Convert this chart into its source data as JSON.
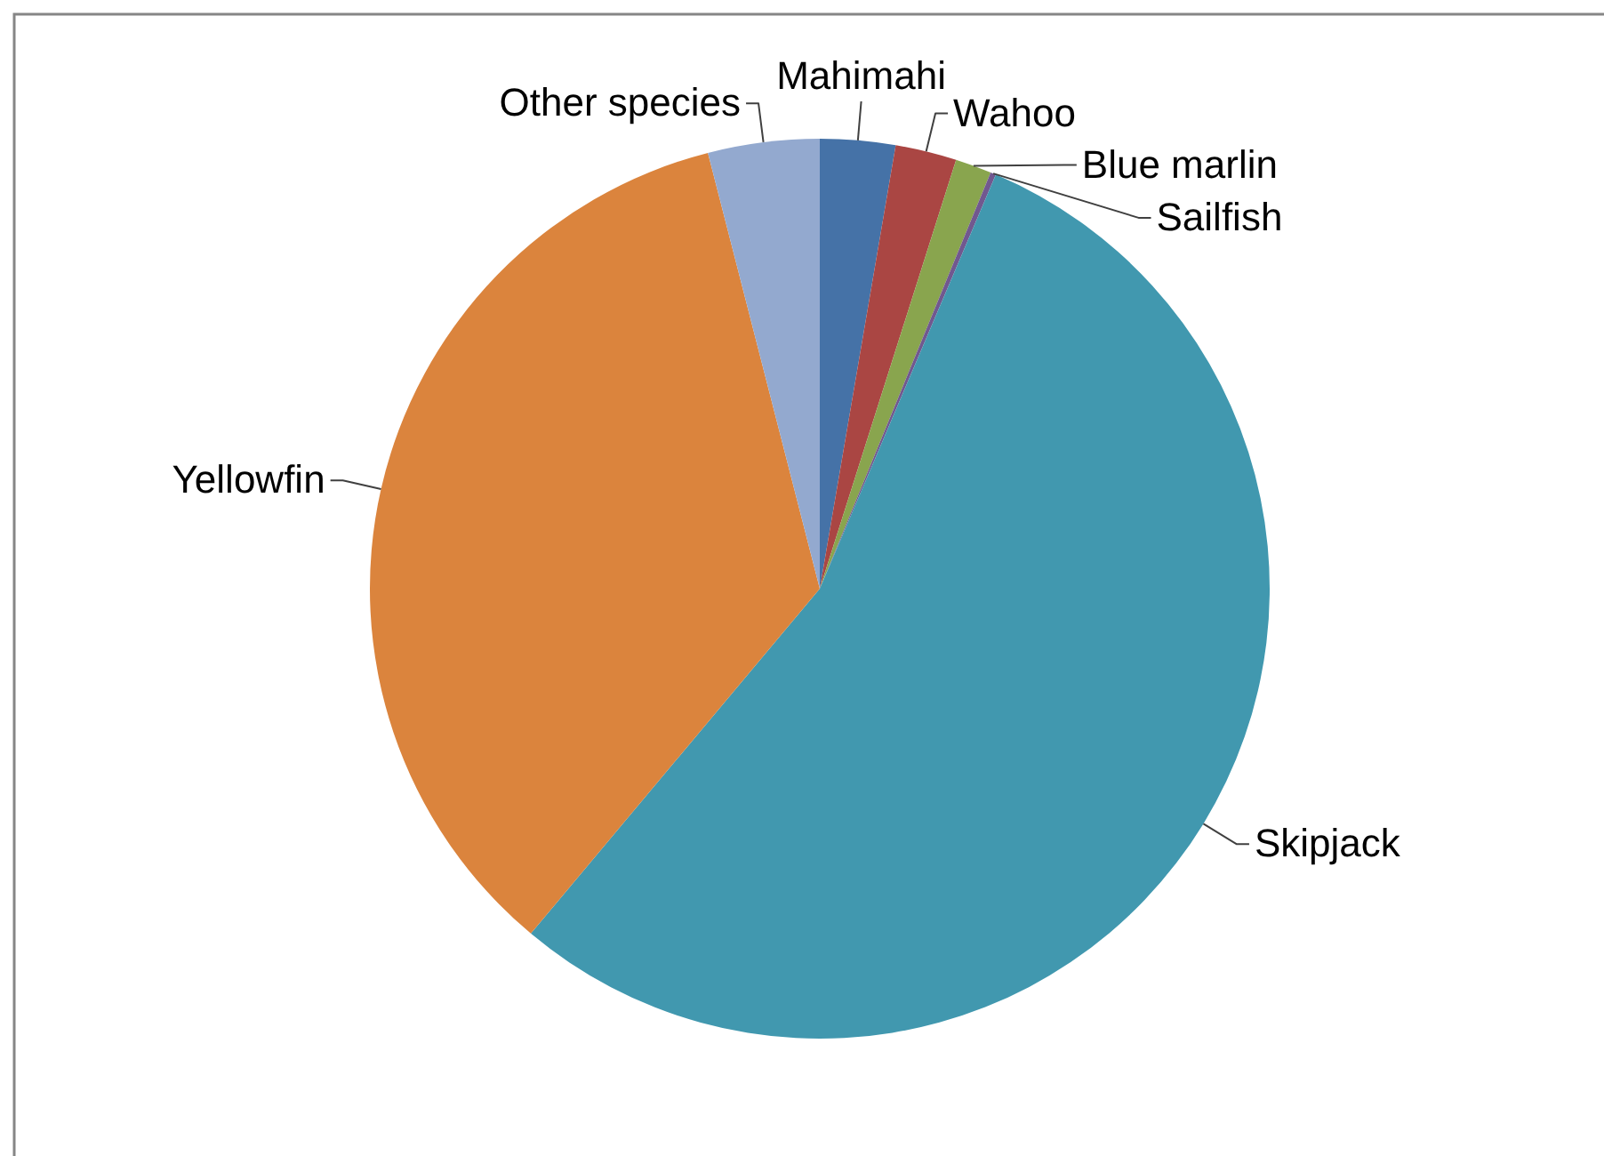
{
  "chart_data": {
    "type": "pie",
    "categories": [
      "Mahimahi",
      "Wahoo",
      "Blue marlin",
      "Sailfish",
      "Skipjack",
      "Yellowfin",
      "Other species"
    ],
    "values": [
      2.7,
      2.2,
      1.3,
      0.2,
      54.7,
      34.9,
      4.0
    ],
    "colors": [
      "#4572a7",
      "#aa4643",
      "#89a54e",
      "#71588f",
      "#4198af",
      "#db843d",
      "#93a9cf"
    ]
  }
}
